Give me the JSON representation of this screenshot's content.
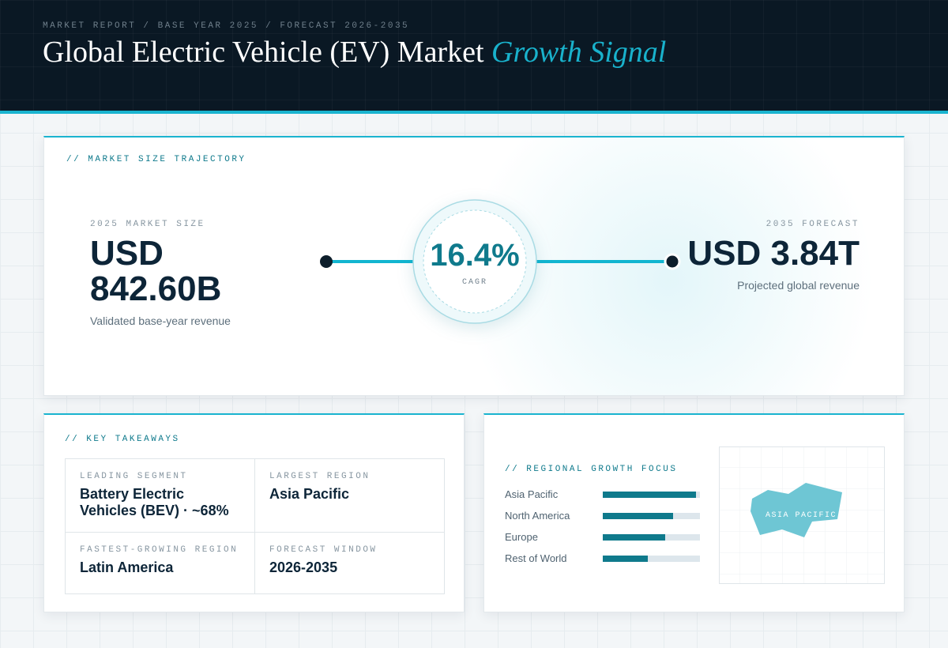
{
  "header": {
    "breadcrumb": "MARKET REPORT / BASE YEAR 2025 / FORECAST 2026-2035",
    "title": "Global Electric Vehicle (EV) Market",
    "title_accent": "Growth Signal"
  },
  "trajectory": {
    "label": "// MARKET SIZE TRAJECTORY",
    "start": {
      "label": "2025 MARKET SIZE",
      "value": "USD 842.60B",
      "note": "Validated base-year revenue"
    },
    "cagr": {
      "value": "16.4%",
      "label": "CAGR"
    },
    "end": {
      "label": "2035 FORECAST",
      "value": "USD 3.84T",
      "note": "Projected global revenue"
    }
  },
  "takeaways": {
    "label": "// KEY TAKEAWAYS",
    "items": [
      {
        "label": "LEADING SEGMENT",
        "value": "Battery Electric Vehicles (BEV) · ~68%"
      },
      {
        "label": "LARGEST REGION",
        "value": "Asia Pacific"
      },
      {
        "label": "FASTEST-GROWING REGION",
        "value": "Latin America"
      },
      {
        "label": "FORECAST WINDOW",
        "value": "2026-2035"
      }
    ]
  },
  "regional": {
    "label": "// REGIONAL GROWTH FOCUS",
    "categories": [
      "Asia Pacific",
      "North America",
      "Europe",
      "Rest of World"
    ],
    "values": [
      96,
      72,
      64,
      46
    ],
    "xlim": [
      0,
      100
    ],
    "map_label": "ASIA PACIFIC"
  }
}
